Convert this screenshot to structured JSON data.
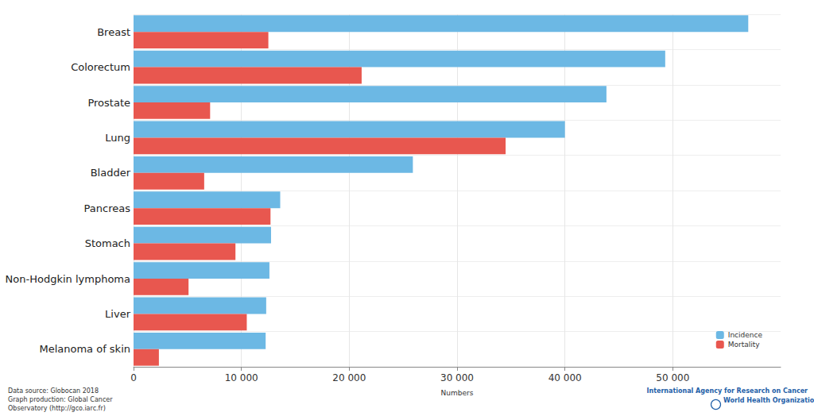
{
  "chart_data": {
    "type": "bar",
    "orientation": "horizontal",
    "categories": [
      "Breast",
      "Colorectum",
      "Prostate",
      "Lung",
      "Bladder",
      "Pancreas",
      "Stomach",
      "Non-Hodgkin lymphoma",
      "Liver",
      "Melanoma of skin"
    ],
    "series": [
      {
        "name": "Incidence",
        "color": "#6cb8e4",
        "values": [
          57000,
          49300,
          43850,
          40000,
          25900,
          13600,
          12750,
          12600,
          12300,
          12250
        ]
      },
      {
        "name": "Mortality",
        "color": "#e8574f",
        "values": [
          12500,
          21150,
          7100,
          34500,
          6550,
          12700,
          9450,
          5100,
          10500,
          2350
        ]
      }
    ],
    "xlabel": "Numbers",
    "xlim": [
      0,
      60000
    ],
    "xticks": [
      0,
      {
        "value": 10000,
        "label": "10 000"
      },
      {
        "value": 20000,
        "label": "20 000"
      },
      {
        "value": 30000,
        "label": "30 000"
      },
      {
        "value": 40000,
        "label": "40 000"
      },
      {
        "value": 50000,
        "label": "50 000"
      }
    ],
    "grid": true,
    "legend": "lower right",
    "annotations": [
      "Data source: Globocan 2018",
      "Graph production: Global Cancer",
      "Observatory (http://gco.iarc.fr)",
      "International Agency for Research on Cancer",
      "World Health Organization"
    ]
  }
}
